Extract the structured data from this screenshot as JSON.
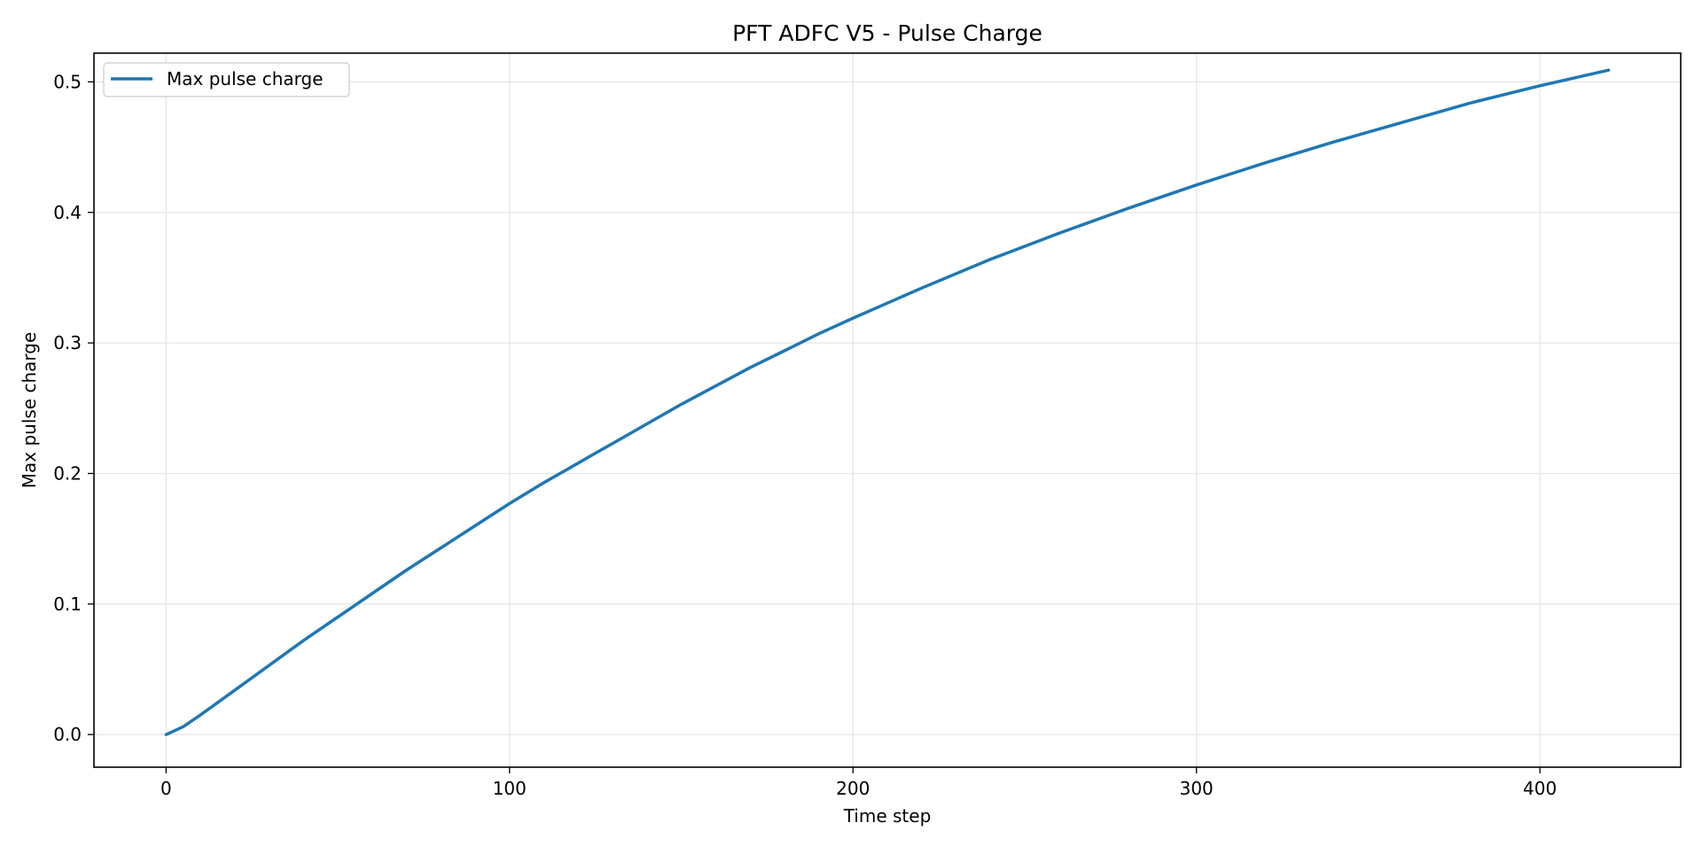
{
  "chart_data": {
    "type": "line",
    "title": "PFT ADFC V5 - Pulse Charge",
    "xlabel": "Time step",
    "ylabel": "Max pulse charge",
    "xlim": [
      -21,
      441
    ],
    "ylim": [
      -0.025,
      0.522
    ],
    "xticks": [
      0,
      100,
      200,
      300,
      400
    ],
    "yticks": [
      0.0,
      0.1,
      0.2,
      0.3,
      0.4,
      0.5
    ],
    "xtick_labels": [
      "0",
      "100",
      "200",
      "300",
      "400"
    ],
    "ytick_labels": [
      "0.0",
      "0.1",
      "0.2",
      "0.3",
      "0.4",
      "0.5"
    ],
    "grid": true,
    "legend_position": "upper-left",
    "series": [
      {
        "name": "Max pulse charge",
        "color": "#1f77b4",
        "x": [
          0,
          5,
          10,
          20,
          30,
          40,
          50,
          60,
          70,
          80,
          90,
          100,
          110,
          120,
          126,
          130,
          140,
          150,
          160,
          170,
          180,
          190,
          200,
          220,
          240,
          260,
          280,
          300,
          320,
          340,
          360,
          380,
          400,
          420
        ],
        "y": [
          0.0,
          0.006,
          0.015,
          0.034,
          0.053,
          0.072,
          0.09,
          0.108,
          0.126,
          0.143,
          0.16,
          0.177,
          0.193,
          0.208,
          0.217,
          0.223,
          0.238,
          0.253,
          0.267,
          0.281,
          0.294,
          0.307,
          0.319,
          0.342,
          0.364,
          0.384,
          0.403,
          0.421,
          0.438,
          0.454,
          0.469,
          0.484,
          0.497,
          0.509
        ]
      }
    ]
  }
}
